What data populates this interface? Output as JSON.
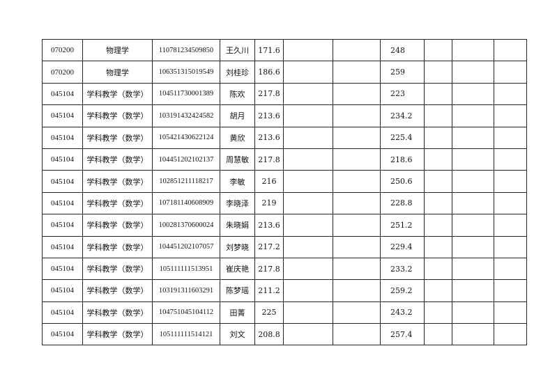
{
  "rows": [
    {
      "code": "070200",
      "major": "物理学",
      "id": "110781234509850",
      "name": "王久川",
      "score1": "171.6",
      "score2": "248"
    },
    {
      "code": "070200",
      "major": "物理学",
      "id": "106351315019549",
      "name": "刘桂珍",
      "score1": "186.6",
      "score2": "259"
    },
    {
      "code": "045104",
      "major": "学科教学（数学）",
      "id": "104511730001389",
      "name": "陈欢",
      "score1": "217.8",
      "score2": "223"
    },
    {
      "code": "045104",
      "major": "学科教学（数学）",
      "id": "103191432424582",
      "name": "胡月",
      "score1": "213.6",
      "score2": "234.2"
    },
    {
      "code": "045104",
      "major": "学科教学（数学）",
      "id": "105421430622124",
      "name": "黄欣",
      "score1": "213.6",
      "score2": "225.4"
    },
    {
      "code": "045104",
      "major": "学科教学（数学）",
      "id": "104451202102137",
      "name": "周慧敏",
      "score1": "217.8",
      "score2": "218.6"
    },
    {
      "code": "045104",
      "major": "学科教学（数学）",
      "id": "102851211118217",
      "name": "李敏",
      "score1": "216",
      "score2": "250.6"
    },
    {
      "code": "045104",
      "major": "学科教学（数学）",
      "id": "107181140608909",
      "name": "李晓泽",
      "score1": "219",
      "score2": "228.8"
    },
    {
      "code": "045104",
      "major": "学科教学（数学）",
      "id": "100281370600024",
      "name": "朱晓娟",
      "score1": "213.6",
      "score2": "251.2"
    },
    {
      "code": "045104",
      "major": "学科教学（数学）",
      "id": "104451202107057",
      "name": "刘梦晓",
      "score1": "217.2",
      "score2": "229.4"
    },
    {
      "code": "045104",
      "major": "学科教学（数学）",
      "id": "105111111513951",
      "name": "崔庆艳",
      "score1": "217.8",
      "score2": "233.2"
    },
    {
      "code": "045104",
      "major": "学科教学（数学）",
      "id": "103191311603291",
      "name": "陈梦瑶",
      "score1": "211.2",
      "score2": "259.2"
    },
    {
      "code": "045104",
      "major": "学科教学（数学）",
      "id": "104751045104112",
      "name": "田菁",
      "score1": "225",
      "score2": "243.2"
    },
    {
      "code": "045104",
      "major": "学科教学（数学）",
      "id": "105111111514121",
      "name": "刘文",
      "score1": "208.8",
      "score2": "257.4"
    }
  ]
}
